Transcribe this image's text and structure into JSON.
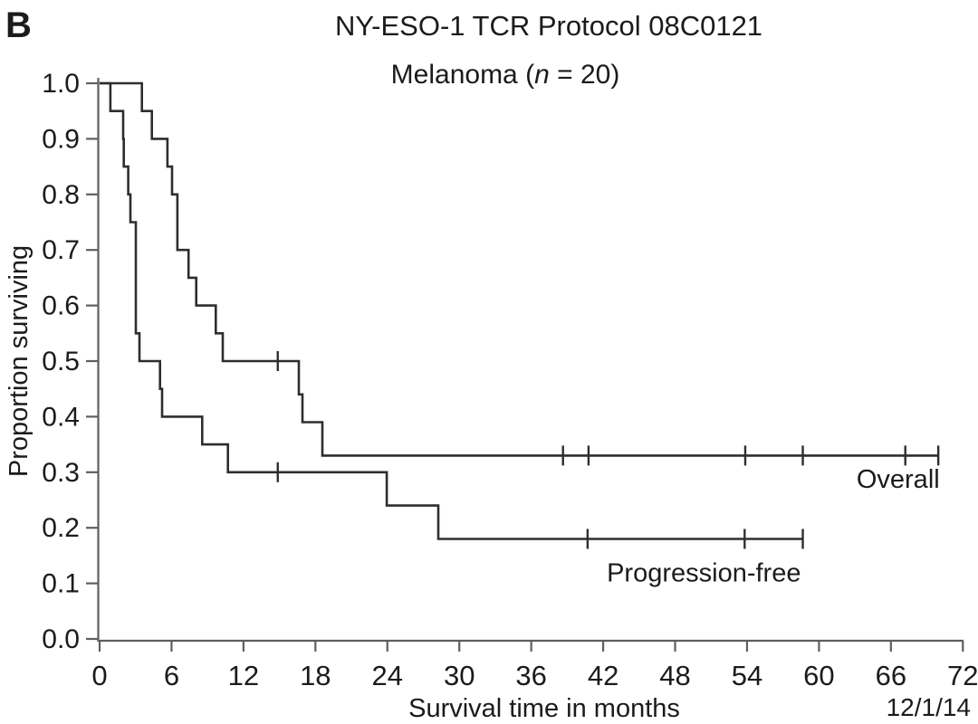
{
  "panel_label": "B",
  "chart_data": {
    "type": "line",
    "subtype": "kaplan-meier-step",
    "title": "NY-ESO-1 TCR Protocol 08C0121",
    "subtitle_prefix": "Melanoma (",
    "subtitle_n_italic": "n",
    "subtitle_suffix": " = 20)",
    "xlabel": "Survival time in months",
    "ylabel": "Proportion surviving",
    "date_annotation": "12/1/14",
    "xlim": [
      0,
      72
    ],
    "ylim": [
      0.0,
      1.0
    ],
    "grid": false,
    "legend_position": "labels-on-plot",
    "x_ticks": [
      0,
      6,
      12,
      18,
      24,
      30,
      36,
      42,
      48,
      54,
      60,
      66,
      72
    ],
    "y_tick_values": [
      0.0,
      0.1,
      0.2,
      0.3,
      0.4,
      0.5,
      0.6,
      0.7,
      0.8,
      0.9,
      1.0
    ],
    "y_tick_labels": [
      "0.0",
      "0.1",
      "0.2",
      "0.3",
      "0.4",
      "0.5",
      "0.6",
      "0.7",
      "0.8",
      "0.9",
      "1.0"
    ],
    "line_color": "#2e2e2e",
    "axis_color": "#5f5f5f",
    "series": [
      {
        "name": "overall",
        "label": "Overall",
        "label_pos": [
          66.6,
          0.288
        ],
        "points": [
          [
            0,
            1.0
          ],
          [
            3.53,
            1.0
          ],
          [
            3.53,
            0.95
          ],
          [
            4.36,
            0.95
          ],
          [
            4.36,
            0.9
          ],
          [
            5.66,
            0.9
          ],
          [
            5.66,
            0.85
          ],
          [
            6.04,
            0.85
          ],
          [
            6.04,
            0.8
          ],
          [
            6.49,
            0.8
          ],
          [
            6.49,
            0.7
          ],
          [
            7.42,
            0.7
          ],
          [
            7.42,
            0.65
          ],
          [
            8.06,
            0.65
          ],
          [
            8.06,
            0.6
          ],
          [
            9.69,
            0.6
          ],
          [
            9.69,
            0.55
          ],
          [
            10.27,
            0.55
          ],
          [
            10.27,
            0.5
          ],
          [
            16.62,
            0.5
          ],
          [
            16.62,
            0.44
          ],
          [
            16.92,
            0.44
          ],
          [
            16.92,
            0.39
          ],
          [
            18.58,
            0.39
          ],
          [
            18.58,
            0.33
          ],
          [
            69.95,
            0.33
          ]
        ],
        "censor_marks": [
          [
            14.86,
            0.5
          ],
          [
            38.65,
            0.33
          ],
          [
            40.78,
            0.33
          ],
          [
            53.85,
            0.33
          ],
          [
            58.65,
            0.33
          ],
          [
            67.2,
            0.33
          ],
          [
            69.95,
            0.33
          ]
        ]
      },
      {
        "name": "progression-free",
        "label": "Progression-free",
        "label_pos": [
          50.4,
          0.12
        ],
        "points": [
          [
            0,
            1.0
          ],
          [
            0.9,
            1.0
          ],
          [
            0.9,
            0.95
          ],
          [
            1.96,
            0.95
          ],
          [
            1.96,
            0.9
          ],
          [
            2.02,
            0.9
          ],
          [
            2.02,
            0.85
          ],
          [
            2.39,
            0.85
          ],
          [
            2.39,
            0.8
          ],
          [
            2.57,
            0.8
          ],
          [
            2.57,
            0.75
          ],
          [
            3.02,
            0.75
          ],
          [
            3.02,
            0.55
          ],
          [
            3.32,
            0.55
          ],
          [
            3.32,
            0.5
          ],
          [
            5.04,
            0.5
          ],
          [
            5.04,
            0.45
          ],
          [
            5.21,
            0.45
          ],
          [
            5.21,
            0.4
          ],
          [
            8.56,
            0.4
          ],
          [
            8.56,
            0.35
          ],
          [
            10.7,
            0.35
          ],
          [
            10.7,
            0.3
          ],
          [
            23.95,
            0.3
          ],
          [
            23.95,
            0.24
          ],
          [
            28.25,
            0.24
          ],
          [
            28.25,
            0.18
          ],
          [
            58.65,
            0.18
          ]
        ],
        "censor_marks": [
          [
            14.86,
            0.3
          ],
          [
            40.7,
            0.18
          ],
          [
            53.8,
            0.18
          ],
          [
            58.65,
            0.18
          ]
        ]
      }
    ]
  }
}
